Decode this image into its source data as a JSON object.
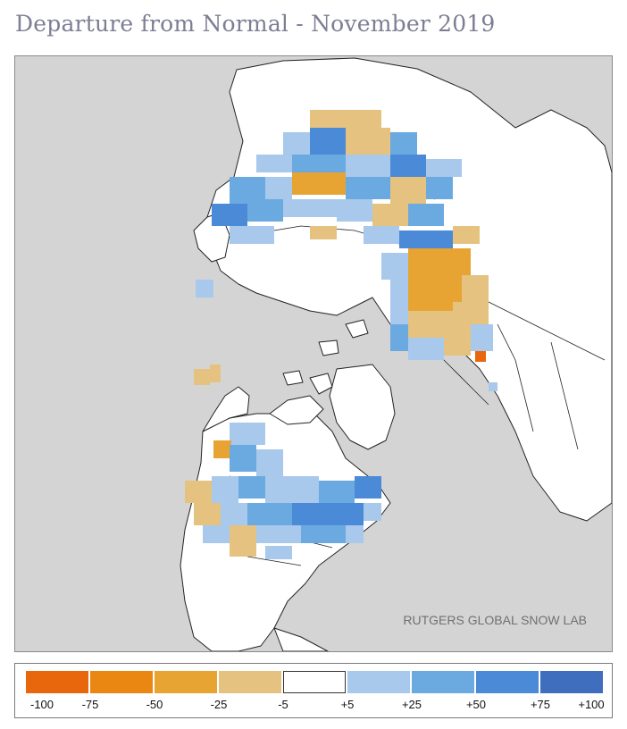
{
  "title": "Departure from Normal - November 2019",
  "credit": "RUTGERS GLOBAL SNOW LAB",
  "legend": {
    "colors": [
      "#e8660c",
      "#ea8713",
      "#e8a433",
      "#e5c27f",
      "#ffffff",
      "#a8c8ec",
      "#6aaae0",
      "#4a8ad6",
      "#3e6ebd"
    ],
    "ticks": [
      "-100",
      "-75",
      "-50",
      "-25",
      "-5",
      "+5",
      "+25",
      "+50",
      "+75",
      "+100"
    ]
  },
  "map_colors": {
    "ocean": "#d4d4d4",
    "land": "#ffffff",
    "border": "#222222"
  }
}
